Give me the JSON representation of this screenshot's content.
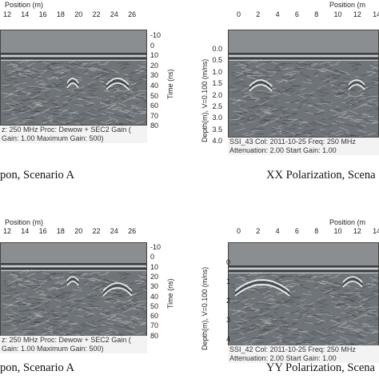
{
  "top_left": {
    "position_label": "Position (m)",
    "x_ticks": [
      "12",
      "14",
      "16",
      "18",
      "20",
      "22",
      "24",
      "26"
    ],
    "y_ticks": [
      "-10",
      "0",
      "10",
      "20",
      "30",
      "40",
      "50",
      "60",
      "70",
      "80"
    ],
    "y_label": "Time (ns)",
    "info_line1": "z: 250 MHz  Proc: Dewow + SEC2 Gain (",
    "info_line2": "Gain: 1.00  Maximum Gain: 500)",
    "caption": "pon, Scenario A"
  },
  "top_right": {
    "position_label": "Position (m",
    "x_ticks": [
      "0",
      "2",
      "4",
      "6",
      "8",
      "10",
      "12",
      "14"
    ],
    "y_ticks": [
      "0.0",
      "0.5",
      "1.0",
      "1.5",
      "2.0",
      "2.5",
      "3.0",
      "3.5",
      "4.0"
    ],
    "y_label": "Depth(m), V=0.100 (m/ns)",
    "info_line1": "SSI_43  Col: 2011-10-25  Freq: 250 MHz",
    "info_line2": "Attenuation: 2.00  Start Gain: 1.00",
    "caption": "XX Polarization, Scena"
  },
  "bottom_left": {
    "position_label": "Position (m)",
    "x_ticks": [
      "12",
      "14",
      "16",
      "18",
      "20",
      "22",
      "24",
      "26"
    ],
    "y_ticks": [
      "-10",
      "0",
      "10",
      "20",
      "30",
      "40",
      "50",
      "60",
      "70",
      "80"
    ],
    "y_label": "Time (ns)",
    "info_line1": "z: 250 MHz  Proc: Dewow + SEC2 Gain (",
    "info_line2": "Gain: 1.00  Maximum Gain: 500)",
    "caption": "pon, Scenario A"
  },
  "bottom_right": {
    "position_label": "Position (m",
    "x_ticks": [
      "0",
      "2",
      "4",
      "6",
      "8",
      "10",
      "12",
      "14"
    ],
    "y_ticks": [
      "0",
      "1",
      "2",
      "3",
      "4"
    ],
    "y_label": "Depth(m), V=0.100 (m/ns)",
    "info_line1": "SSI_42  Col: 2011-10-25  Freq: 250 MHz",
    "info_line2": "Attenuation: 2.00  Start Gain: 1.00",
    "caption": "YY Polarization, Scena"
  },
  "colors": {
    "radargram_bg": "#6f7478",
    "air_band": "#8a8e91",
    "stripe_dark": "#3b3f43",
    "stripe_light": "#c9cbcd",
    "hyperbola": "#f2f2f2"
  }
}
